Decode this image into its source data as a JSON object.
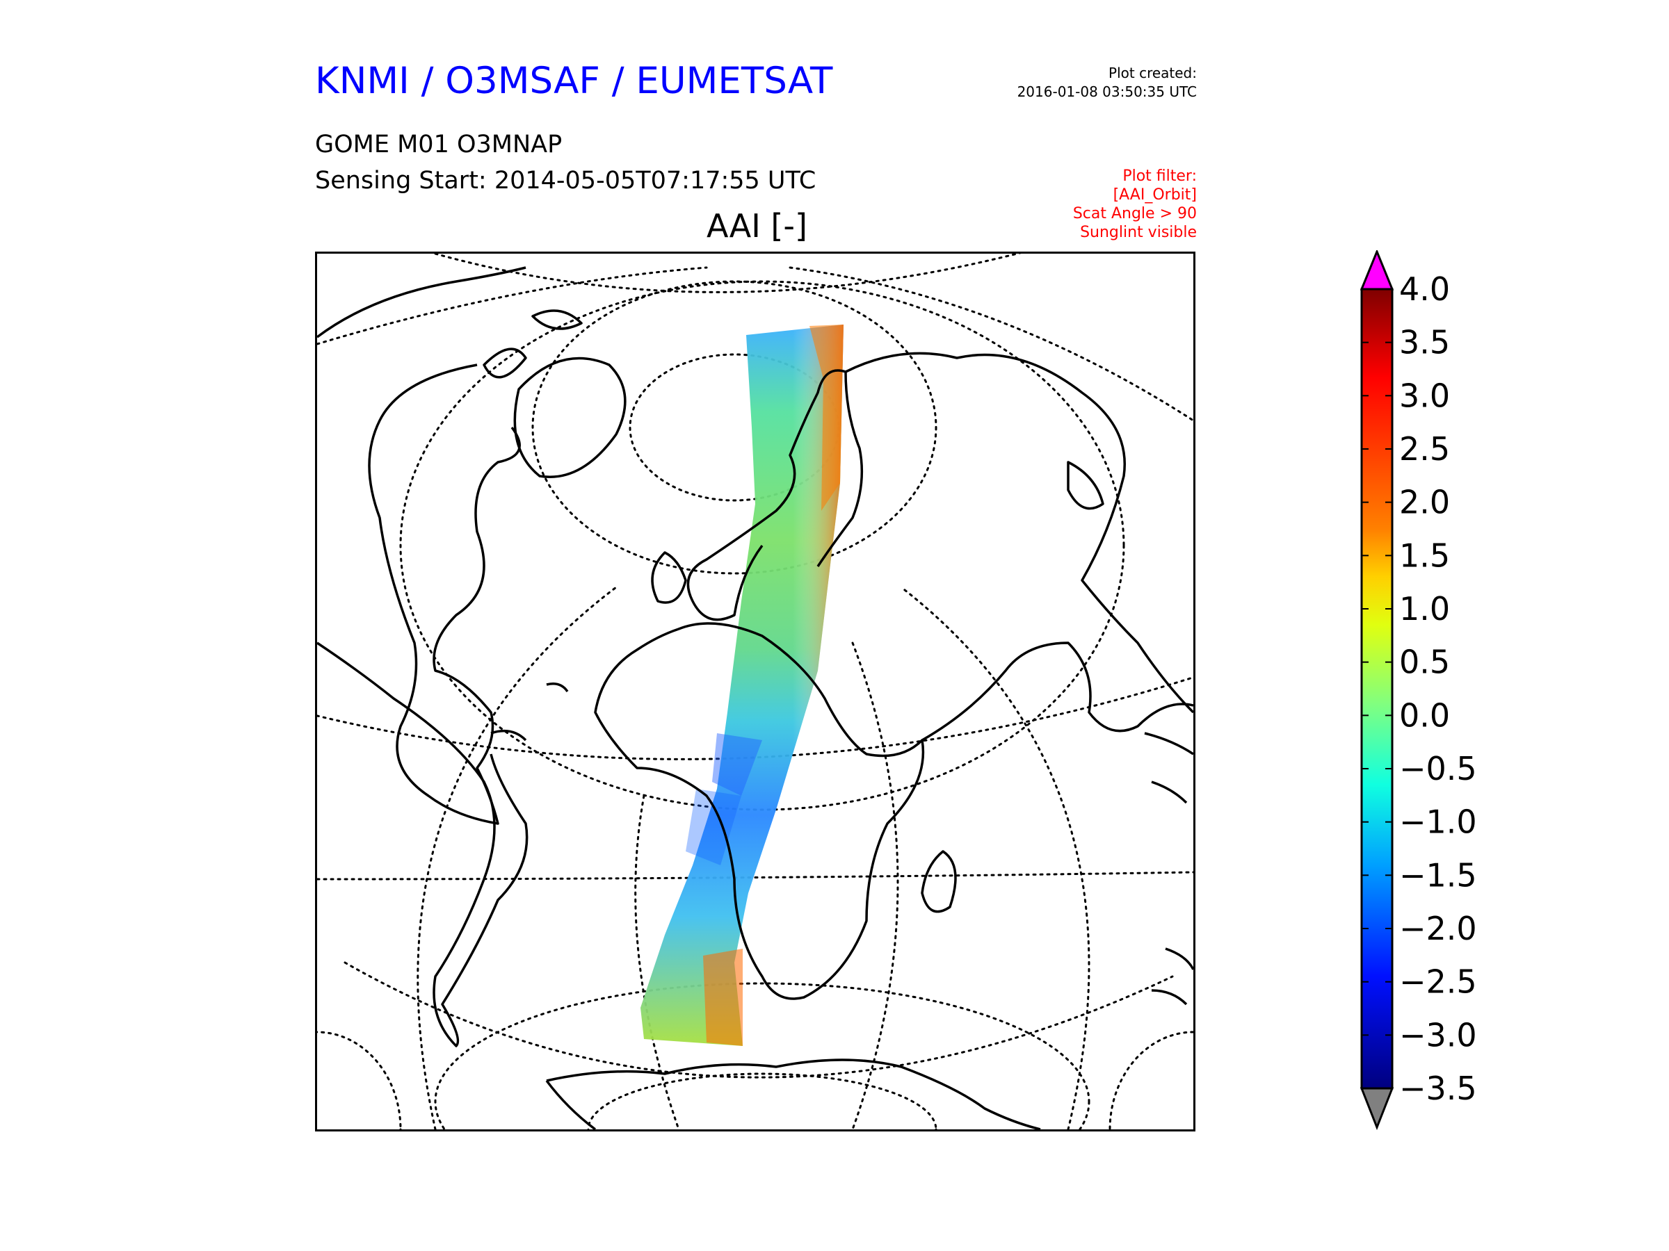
{
  "header": {
    "agency": "KNMI / O3MSAF / EUMETSAT",
    "plot_created_label": "Plot created:",
    "plot_created_time": "2016-01-08 03:50:35 UTC",
    "product": "GOME M01 O3MNAP",
    "sensing_start": "Sensing Start: 2014-05-05T07:17:55 UTC"
  },
  "plot_filter": {
    "label": "Plot filter:",
    "lines": [
      "[AAI_Orbit]",
      "Scat Angle > 90",
      "Sunglint visible"
    ]
  },
  "map": {
    "title": "AAI [-]",
    "projection": "orthographic / polar-centered globe",
    "graticule": "dotted",
    "swath": "single satellite orbit swath from Arctic to South Atlantic"
  },
  "colorbar": {
    "ticks": [
      "4.0",
      "3.5",
      "3.0",
      "2.5",
      "2.0",
      "1.5",
      "1.0",
      "0.5",
      "0.0",
      "−0.5",
      "−1.0",
      "−1.5",
      "−2.0",
      "−2.5",
      "−3.0",
      "−3.5"
    ],
    "min": -3.5,
    "max": 4.0,
    "over_color": "#ff00ff",
    "under_color": "#808080",
    "colormap": "jet"
  },
  "colors": {
    "title": "#0000ff",
    "filter": "#ff0000"
  }
}
